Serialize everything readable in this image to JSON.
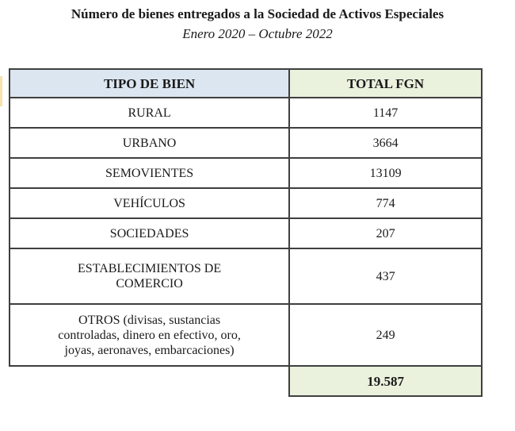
{
  "title": "Número de bienes entregados a la Sociedad de Activos Especiales",
  "subtitle": "Enero 2020 – Octubre 2022",
  "table": {
    "headers": {
      "tipo": "TIPO DE BIEN",
      "total": "TOTAL FGN"
    },
    "rows": [
      {
        "tipo": "RURAL",
        "total": "1147"
      },
      {
        "tipo": "URBANO",
        "total": "3664"
      },
      {
        "tipo": "SEMOVIENTES",
        "total": "13109"
      },
      {
        "tipo": "VEHÍCULOS",
        "total": "774"
      },
      {
        "tipo": "SOCIEDADES",
        "total": "207"
      },
      {
        "tipo": [
          "ESTABLECIMIENTOS DE",
          "COMERCIO"
        ],
        "total": "437"
      },
      {
        "tipo": [
          "OTROS (divisas, sustancias",
          "controladas, dinero en efectivo, oro,",
          "joyas, aeronaves, embarcaciones)"
        ],
        "total": "249"
      }
    ],
    "grand_total": "19.587"
  },
  "colors": {
    "header_tipo_bg": "#dce6f1",
    "header_total_bg": "#eaf1dd",
    "grand_total_bg": "#eaf1dd",
    "border": "#3f3f3f",
    "text": "#1a1a1a"
  }
}
